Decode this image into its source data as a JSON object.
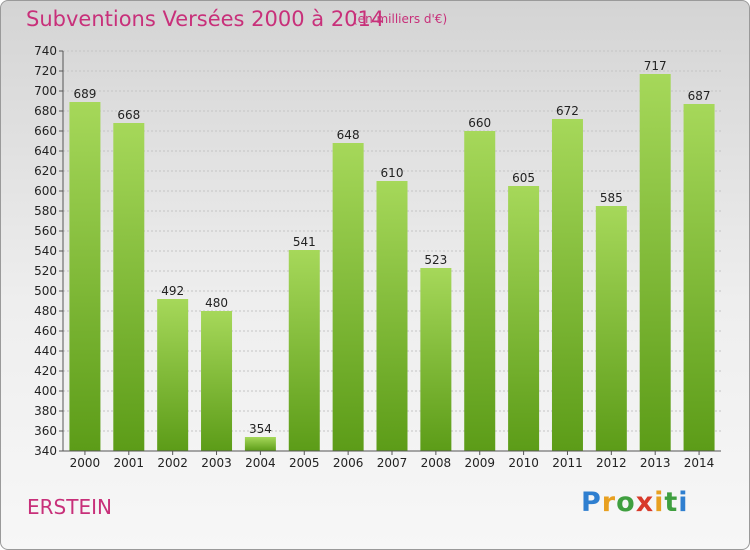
{
  "header": {
    "title": "Subventions Versées 2000 à 2014",
    "unit": "(en milliers d'€)"
  },
  "footer": {
    "commune": "ERSTEIN",
    "logo": "Proxiti"
  },
  "colors": {
    "bar_light": "#a2d455",
    "bar_dark": "#5a9a16",
    "title": "#c8307a"
  },
  "chart_data": {
    "type": "bar",
    "title": "Subventions Versées 2000 à 2014",
    "subtitle": "(en milliers d'€)",
    "categories": [
      "2000",
      "2001",
      "2002",
      "2003",
      "2004",
      "2005",
      "2006",
      "2007",
      "2008",
      "2009",
      "2010",
      "2011",
      "2012",
      "2013",
      "2014"
    ],
    "values": [
      689,
      668,
      492,
      480,
      354,
      541,
      648,
      610,
      523,
      660,
      605,
      672,
      585,
      717,
      687
    ],
    "ylim": [
      340,
      740
    ],
    "yticks": [
      340,
      360,
      380,
      400,
      420,
      440,
      460,
      480,
      500,
      520,
      540,
      560,
      580,
      600,
      620,
      640,
      660,
      680,
      700,
      720,
      740
    ],
    "grid": true,
    "legend": "none"
  }
}
